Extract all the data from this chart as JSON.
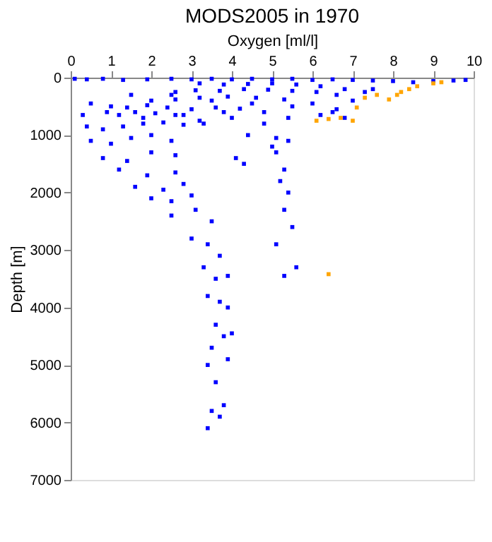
{
  "chart_data": {
    "type": "scatter",
    "title": "MODS2005 in 1970",
    "xlabel": "Oxygen [ml/l]",
    "ylabel": "Depth [m]",
    "xlim": [
      0,
      10
    ],
    "xticks": [
      0,
      1,
      2,
      3,
      4,
      5,
      6,
      7,
      8,
      9,
      10
    ],
    "ylim": [
      7000,
      0
    ],
    "yticks": [
      0,
      1000,
      2000,
      3000,
      4000,
      5000,
      6000,
      7000
    ],
    "grid": false,
    "legend": false,
    "marker": "square",
    "series": [
      {
        "color": "#0000ff",
        "x": [
          0.1,
          0.4,
          0.8,
          1.3,
          1.9,
          2.5,
          3.0,
          3.5,
          4.0,
          4.5,
          5.0,
          5.5,
          6.0,
          6.5,
          7.0,
          7.5,
          8.0,
          8.5,
          9.0,
          9.5,
          9.8,
          3.2,
          3.8,
          4.4,
          5.0,
          5.6,
          6.2,
          6.8,
          7.3,
          7.5,
          2.6,
          3.1,
          3.7,
          4.3,
          4.9,
          5.5,
          6.1,
          6.6,
          7.0,
          2.0,
          2.6,
          3.2,
          3.9,
          4.6,
          5.3,
          6.0,
          6.6,
          1.0,
          1.4,
          1.9,
          2.4,
          3.0,
          3.6,
          4.2,
          4.8,
          5.4,
          6.2,
          6.8,
          0.3,
          0.5,
          0.9,
          1.2,
          1.6,
          2.1,
          2.6,
          3.2,
          4.0,
          0.4,
          0.8,
          1.3,
          1.8,
          2.3,
          2.8,
          3.3,
          0.5,
          1.0,
          1.5,
          2.0,
          2.5,
          0.8,
          1.4,
          2.0,
          2.6,
          1.2,
          1.9,
          2.6,
          1.6,
          2.3,
          2.8,
          2.0,
          2.5,
          3.0,
          2.5,
          3.1,
          3.5,
          3.0,
          3.4,
          3.7,
          3.3,
          3.6,
          3.9,
          3.4,
          3.7,
          3.9,
          3.6,
          3.8,
          4.0,
          3.5,
          3.9,
          3.4,
          3.6,
          3.8,
          3.5,
          3.7,
          3.4,
          4.4,
          5.1,
          5.4,
          5.0,
          4.1,
          4.3,
          5.1,
          5.3,
          5.2,
          5.4,
          5.3,
          5.5,
          5.1,
          5.6,
          5.3,
          1.5,
          2.5,
          3.5,
          4.5,
          5.5,
          6.5,
          1.8,
          2.8,
          3.8,
          4.8
        ],
        "values": [
          20,
          30,
          20,
          40,
          30,
          20,
          30,
          20,
          30,
          20,
          30,
          20,
          40,
          30,
          40,
          50,
          60,
          80,
          60,
          50,
          40,
          100,
          120,
          110,
          100,
          120,
          150,
          200,
          250,
          200,
          250,
          220,
          230,
          200,
          210,
          230,
          250,
          300,
          400,
          400,
          380,
          350,
          330,
          350,
          380,
          450,
          550,
          500,
          520,
          480,
          520,
          550,
          520,
          540,
          600,
          700,
          650,
          700,
          650,
          450,
          600,
          650,
          600,
          620,
          650,
          750,
          700,
          850,
          900,
          850,
          800,
          780,
          820,
          800,
          1100,
          1150,
          1050,
          1000,
          1100,
          1400,
          1450,
          1300,
          1350,
          1600,
          1700,
          1650,
          1900,
          1950,
          1850,
          2100,
          2150,
          2050,
          2400,
          2300,
          2500,
          2800,
          2900,
          3100,
          3300,
          3500,
          3450,
          3800,
          3900,
          4000,
          4300,
          4500,
          4450,
          4700,
          4900,
          5000,
          5300,
          5700,
          5800,
          5900,
          6100,
          1000,
          1050,
          1100,
          1200,
          1400,
          1500,
          1300,
          1600,
          1800,
          2000,
          2300,
          2600,
          2900,
          3300,
          3450,
          300,
          300,
          400,
          450,
          500,
          600,
          700,
          650,
          600,
          800
        ]
      },
      {
        "color": "#ffa500",
        "x": [
          6.1,
          6.4,
          6.7,
          7.0,
          7.1,
          7.3,
          7.6,
          7.9,
          8.1,
          8.2,
          8.4,
          8.6,
          9.0,
          9.2,
          6.4
        ],
        "values": [
          750,
          720,
          700,
          750,
          520,
          350,
          300,
          380,
          300,
          250,
          200,
          150,
          100,
          80,
          3420
        ]
      }
    ]
  }
}
